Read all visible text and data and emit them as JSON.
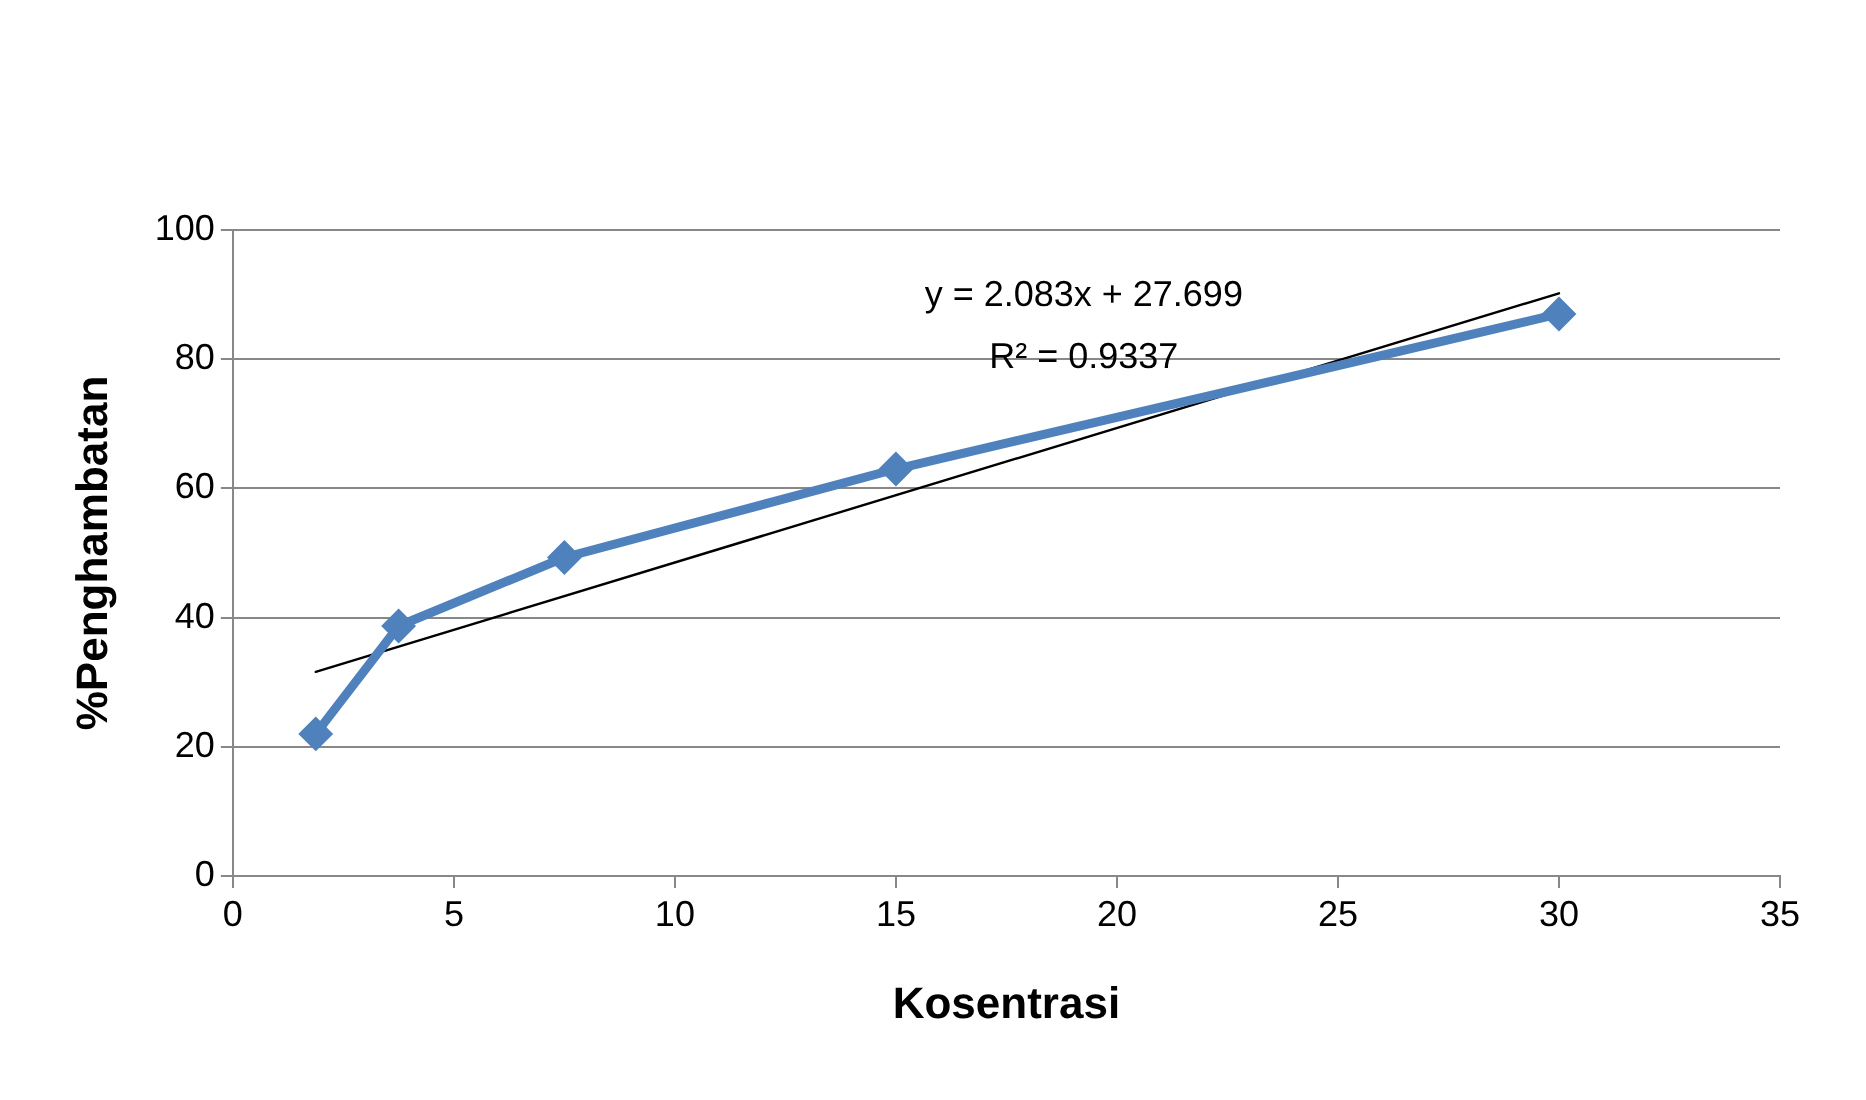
{
  "chart_data": {
    "type": "line",
    "xlabel": "Kosentrasi",
    "ylabel": "%Penghambatan",
    "series": [
      {
        "color": "#4f81bd",
        "x": [
          1.875,
          3.75,
          7.5,
          15,
          30
        ],
        "values": [
          22,
          38.7,
          49.3,
          63,
          87
        ]
      },
      {
        "color": "#000000",
        "x": [
          1.875,
          30
        ],
        "values": [
          31.6,
          90.2
        ],
        "marker": "none"
      }
    ],
    "xlim": [
      0,
      35
    ],
    "xticks": [
      0,
      5,
      10,
      15,
      20,
      25,
      30,
      35
    ],
    "ylim": [
      0,
      100
    ],
    "yticks": [
      0,
      20,
      40,
      60,
      80,
      100
    ],
    "grid": "y",
    "legend": false,
    "marker": "diamond",
    "annotations": [
      "y = 2.083x + 27.699",
      "R² = 0.9337"
    ]
  }
}
